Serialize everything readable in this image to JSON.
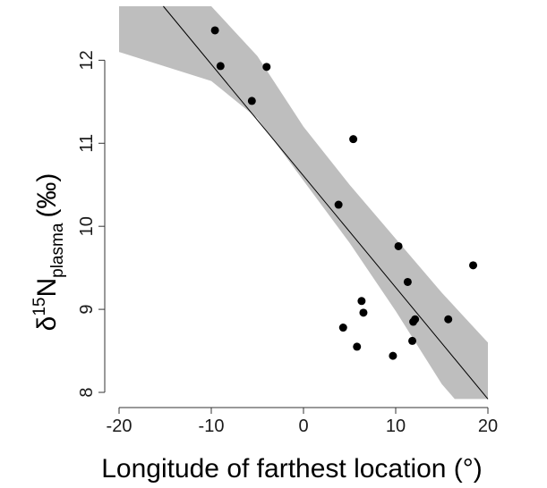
{
  "chart_data": {
    "type": "scatter",
    "xlabel": "Longitude of farthest location (°)",
    "ylabel": {
      "delta": "δ",
      "sup": "15",
      "base": "N",
      "sub": "plasma",
      "unit": "(‰)"
    },
    "xlim": [
      -20,
      20
    ],
    "ylim": [
      8,
      12.65
    ],
    "x_ticks": [
      -20,
      -10,
      0,
      10,
      20
    ],
    "x_tick_labels": [
      "-20",
      "-10",
      "0",
      "10",
      "20"
    ],
    "y_ticks": [
      8,
      9,
      10,
      11,
      12
    ],
    "y_tick_labels": [
      "8",
      "9",
      "10",
      "11",
      "12"
    ],
    "grid": false,
    "points": [
      {
        "x": -9.6,
        "y": 12.36
      },
      {
        "x": -9.0,
        "y": 11.93
      },
      {
        "x": -4.0,
        "y": 11.92
      },
      {
        "x": -5.6,
        "y": 11.51
      },
      {
        "x": 5.4,
        "y": 11.05
      },
      {
        "x": 3.8,
        "y": 10.26
      },
      {
        "x": 10.3,
        "y": 9.76
      },
      {
        "x": 18.4,
        "y": 9.53
      },
      {
        "x": 11.3,
        "y": 9.33
      },
      {
        "x": 6.3,
        "y": 9.1
      },
      {
        "x": 6.5,
        "y": 8.96
      },
      {
        "x": 12.1,
        "y": 8.88
      },
      {
        "x": 15.7,
        "y": 8.88
      },
      {
        "x": 11.9,
        "y": 8.85
      },
      {
        "x": 4.3,
        "y": 8.78
      },
      {
        "x": 11.8,
        "y": 8.62
      },
      {
        "x": 5.8,
        "y": 8.55
      },
      {
        "x": 9.7,
        "y": 8.44
      }
    ],
    "fit_line": {
      "x": [
        -15.2,
        20
      ],
      "y": [
        12.65,
        7.92
      ]
    },
    "confidence_band": {
      "upper": [
        {
          "x": -20,
          "y": 12.65
        },
        {
          "x": -10,
          "y": 12.65
        },
        {
          "x": -5,
          "y": 12.05
        },
        {
          "x": 0,
          "y": 11.2
        },
        {
          "x": 5,
          "y": 10.5
        },
        {
          "x": 10,
          "y": 9.85
        },
        {
          "x": 15,
          "y": 9.2
        },
        {
          "x": 20,
          "y": 8.6
        }
      ],
      "lower": [
        {
          "x": -20,
          "y": 12.1
        },
        {
          "x": -10,
          "y": 11.75
        },
        {
          "x": -5,
          "y": 11.3
        },
        {
          "x": 0,
          "y": 10.55
        },
        {
          "x": 5,
          "y": 9.8
        },
        {
          "x": 10,
          "y": 8.98
        },
        {
          "x": 15,
          "y": 8.1
        },
        {
          "x": 16.4,
          "y": 7.92
        },
        {
          "x": 20,
          "y": 7.92
        }
      ]
    },
    "colors": {
      "points": "#000000",
      "band": "#bebebe",
      "line": "#000000",
      "axis": "#333333"
    }
  }
}
